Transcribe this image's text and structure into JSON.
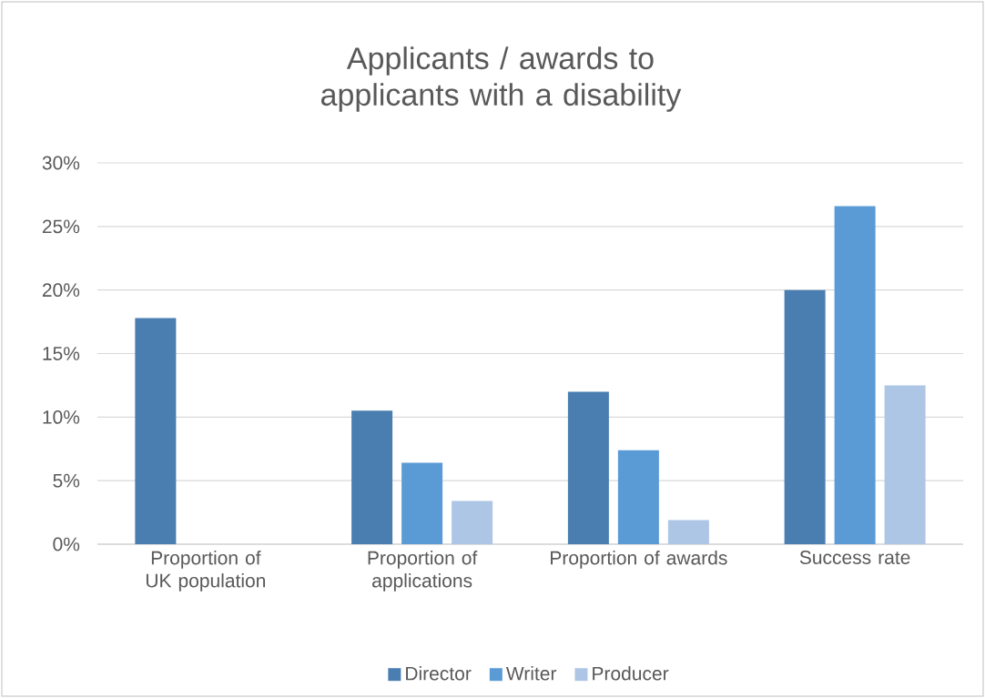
{
  "chart_data": {
    "type": "bar",
    "title": "Applicants / awards to applicants with a disability",
    "categories": [
      "Proportion of UK population",
      "Proportion of applications",
      "Proportion of awards",
      "Success rate"
    ],
    "series": [
      {
        "name": "Director",
        "color": "#4a7eb0",
        "values": [
          17.8,
          10.5,
          12.0,
          20.0
        ]
      },
      {
        "name": "Writer",
        "color": "#5b9bd5",
        "values": [
          null,
          6.4,
          7.4,
          26.6
        ]
      },
      {
        "name": "Producer",
        "color": "#adc6e5",
        "values": [
          null,
          3.4,
          1.9,
          12.5
        ]
      }
    ],
    "ylim": [
      0,
      30
    ],
    "yticks": [
      {
        "value": 0,
        "label": "0%"
      },
      {
        "value": 5,
        "label": "5%"
      },
      {
        "value": 10,
        "label": "10%"
      },
      {
        "value": 15,
        "label": "15%"
      },
      {
        "value": 20,
        "label": "20%"
      },
      {
        "value": 25,
        "label": "25%"
      },
      {
        "value": 30,
        "label": "30%"
      }
    ],
    "grid": "y",
    "legend": "bottom"
  }
}
